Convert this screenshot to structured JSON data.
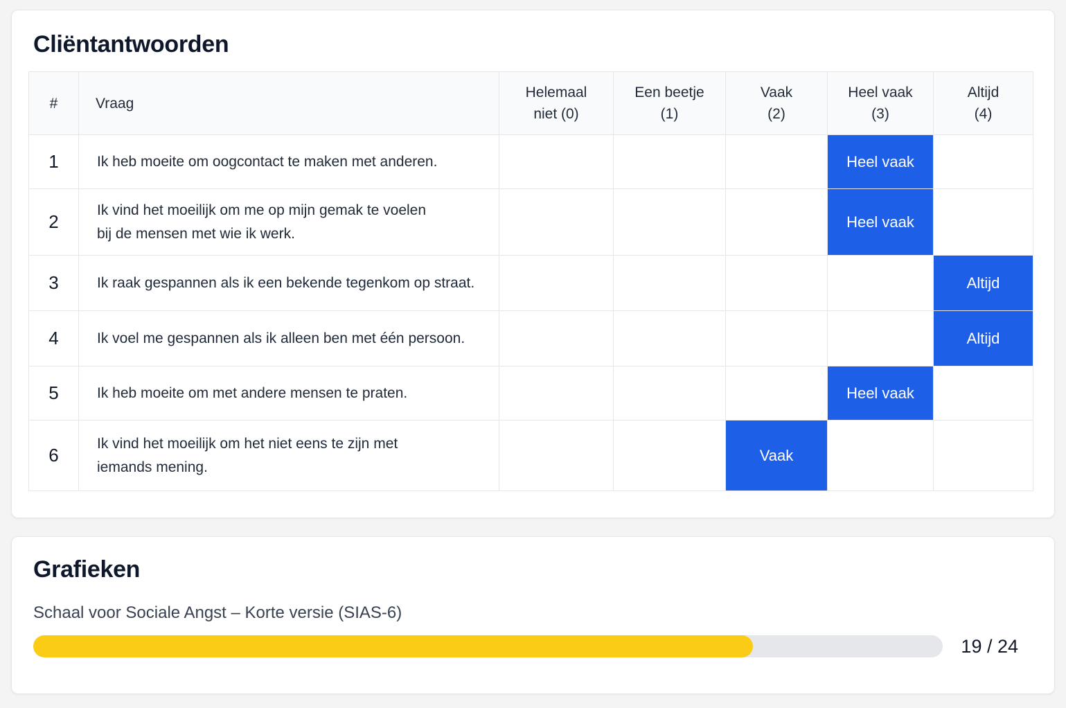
{
  "responses": {
    "title": "Cliëntantwoorden",
    "columns": {
      "num": "#",
      "question": "Vraag",
      "options": [
        "Helemaal\nniet (0)",
        "Een beetje\n(1)",
        "Vaak\n(2)",
        "Heel vaak\n(3)",
        "Altijd\n(4)"
      ]
    },
    "rows": [
      {
        "num": "1",
        "question": "Ik heb moeite om oogcontact te maken met anderen.",
        "selected_index": 3,
        "selected_label": "Heel vaak"
      },
      {
        "num": "2",
        "question": "Ik vind het moeilijk om me op mijn gemak te voelen\nbij de mensen met wie ik werk.",
        "selected_index": 3,
        "selected_label": "Heel vaak"
      },
      {
        "num": "3",
        "question": "Ik raak gespannen als ik een bekende tegenkom op straat.",
        "selected_index": 4,
        "selected_label": "Altijd"
      },
      {
        "num": "4",
        "question": "Ik voel me gespannen als ik alleen ben met één persoon.",
        "selected_index": 4,
        "selected_label": "Altijd"
      },
      {
        "num": "5",
        "question": "Ik heb moeite om met andere mensen te praten.",
        "selected_index": 3,
        "selected_label": "Heel vaak"
      },
      {
        "num": "6",
        "question": "Ik vind het moeilijk om het niet eens te zijn met\niemands mening.",
        "selected_index": 2,
        "selected_label": "Vaak"
      }
    ],
    "selected_color": "#1d5fe6"
  },
  "charts": {
    "title": "Grafieken",
    "scale_name": "Schaal voor Sociale Angst – Korte versie (SIAS-6)",
    "score": 19,
    "max_score": 24,
    "score_label": "19 / 24",
    "bar_color": "#facc15"
  }
}
